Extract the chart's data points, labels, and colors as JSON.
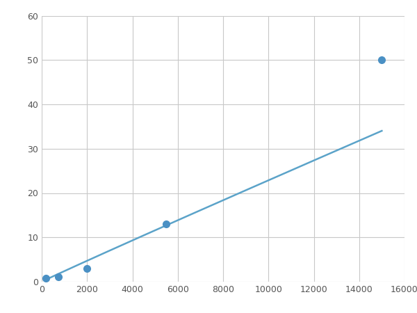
{
  "x_points": [
    188,
    750,
    2000,
    5500,
    15000
  ],
  "y_points": [
    0.8,
    1.1,
    3.0,
    13.0,
    50.0
  ],
  "line_color": "#5ba3c9",
  "marker_color": "#4a90c4",
  "marker_size": 7,
  "linewidth": 1.8,
  "xlim": [
    0,
    16000
  ],
  "ylim": [
    0,
    60
  ],
  "xticks": [
    0,
    2000,
    4000,
    6000,
    8000,
    10000,
    12000,
    14000,
    16000
  ],
  "yticks": [
    0,
    10,
    20,
    30,
    40,
    50,
    60
  ],
  "grid_color": "#c8c8c8",
  "background_color": "#ffffff",
  "figsize": [
    6.0,
    4.5
  ],
  "dpi": 100
}
